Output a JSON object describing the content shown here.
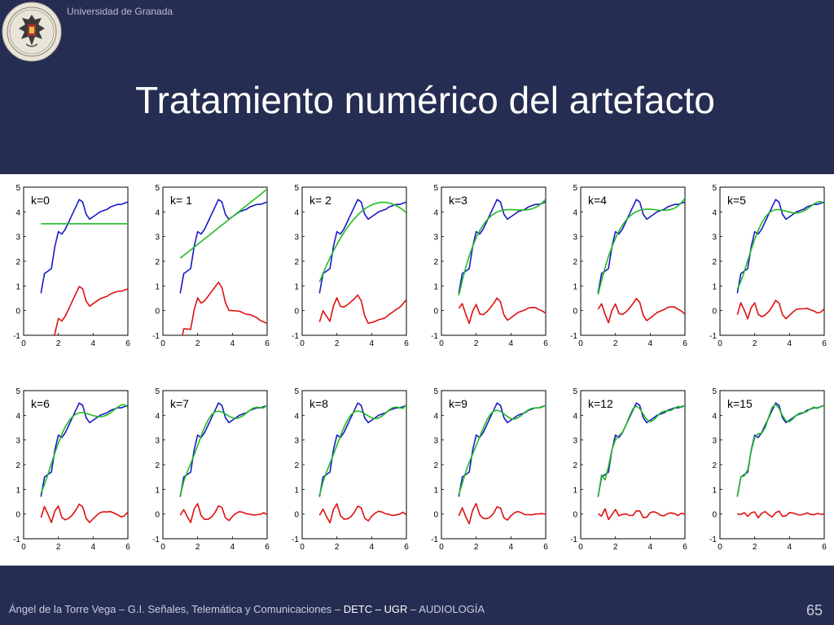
{
  "header": {
    "university": "Universidad de Granada",
    "title": "Tratamiento numérico del artefacto"
  },
  "footer": {
    "author": "Ángel de la Torre Vega – G.I. Señales, Telemática y Comunicaciones – ",
    "dept": "DETC – UGR",
    "sep": " – ",
    "area": "AUDIOLOGÍA",
    "page_number": "65"
  },
  "colors": {
    "background": "#262d52",
    "signal": "#1a1ac8",
    "fit": "#22bb22",
    "residual": "#dd1111"
  },
  "chart_data": {
    "type": "line",
    "layout": "small-multiples 2x6",
    "xlim": [
      0,
      6
    ],
    "ylim": [
      -1,
      5
    ],
    "xticks": [
      0,
      2,
      4,
      6
    ],
    "yticks": [
      -1,
      0,
      1,
      2,
      3,
      4,
      5
    ],
    "panels": [
      {
        "label": "k=0",
        "order": 0
      },
      {
        "label": "k= 1",
        "order": 1
      },
      {
        "label": "k= 2",
        "order": 2
      },
      {
        "label": "k=3",
        "order": 3
      },
      {
        "label": "k=4",
        "order": 4
      },
      {
        "label": "k=5",
        "order": 5
      },
      {
        "label": "k=6",
        "order": 6
      },
      {
        "label": "k=7",
        "order": 7
      },
      {
        "label": "k=8",
        "order": 8
      },
      {
        "label": "k=9",
        "order": 9
      },
      {
        "label": "k=12",
        "order": 12
      },
      {
        "label": "k=15",
        "order": 15
      }
    ],
    "signal_x": [
      1.0,
      1.2,
      1.4,
      1.6,
      1.8,
      2.0,
      2.2,
      2.4,
      2.6,
      2.8,
      3.0,
      3.2,
      3.4,
      3.6,
      3.8,
      4.0,
      4.2,
      4.4,
      4.6,
      4.8,
      5.0,
      5.2,
      5.4,
      5.6,
      5.8,
      6.0
    ],
    "signal_y": [
      0.7,
      1.5,
      1.6,
      1.7,
      2.6,
      3.2,
      3.1,
      3.3,
      3.6,
      3.9,
      4.2,
      4.5,
      4.4,
      3.9,
      3.7,
      3.8,
      3.9,
      4.0,
      4.05,
      4.1,
      4.2,
      4.25,
      4.3,
      4.3,
      4.35,
      4.4
    ]
  }
}
